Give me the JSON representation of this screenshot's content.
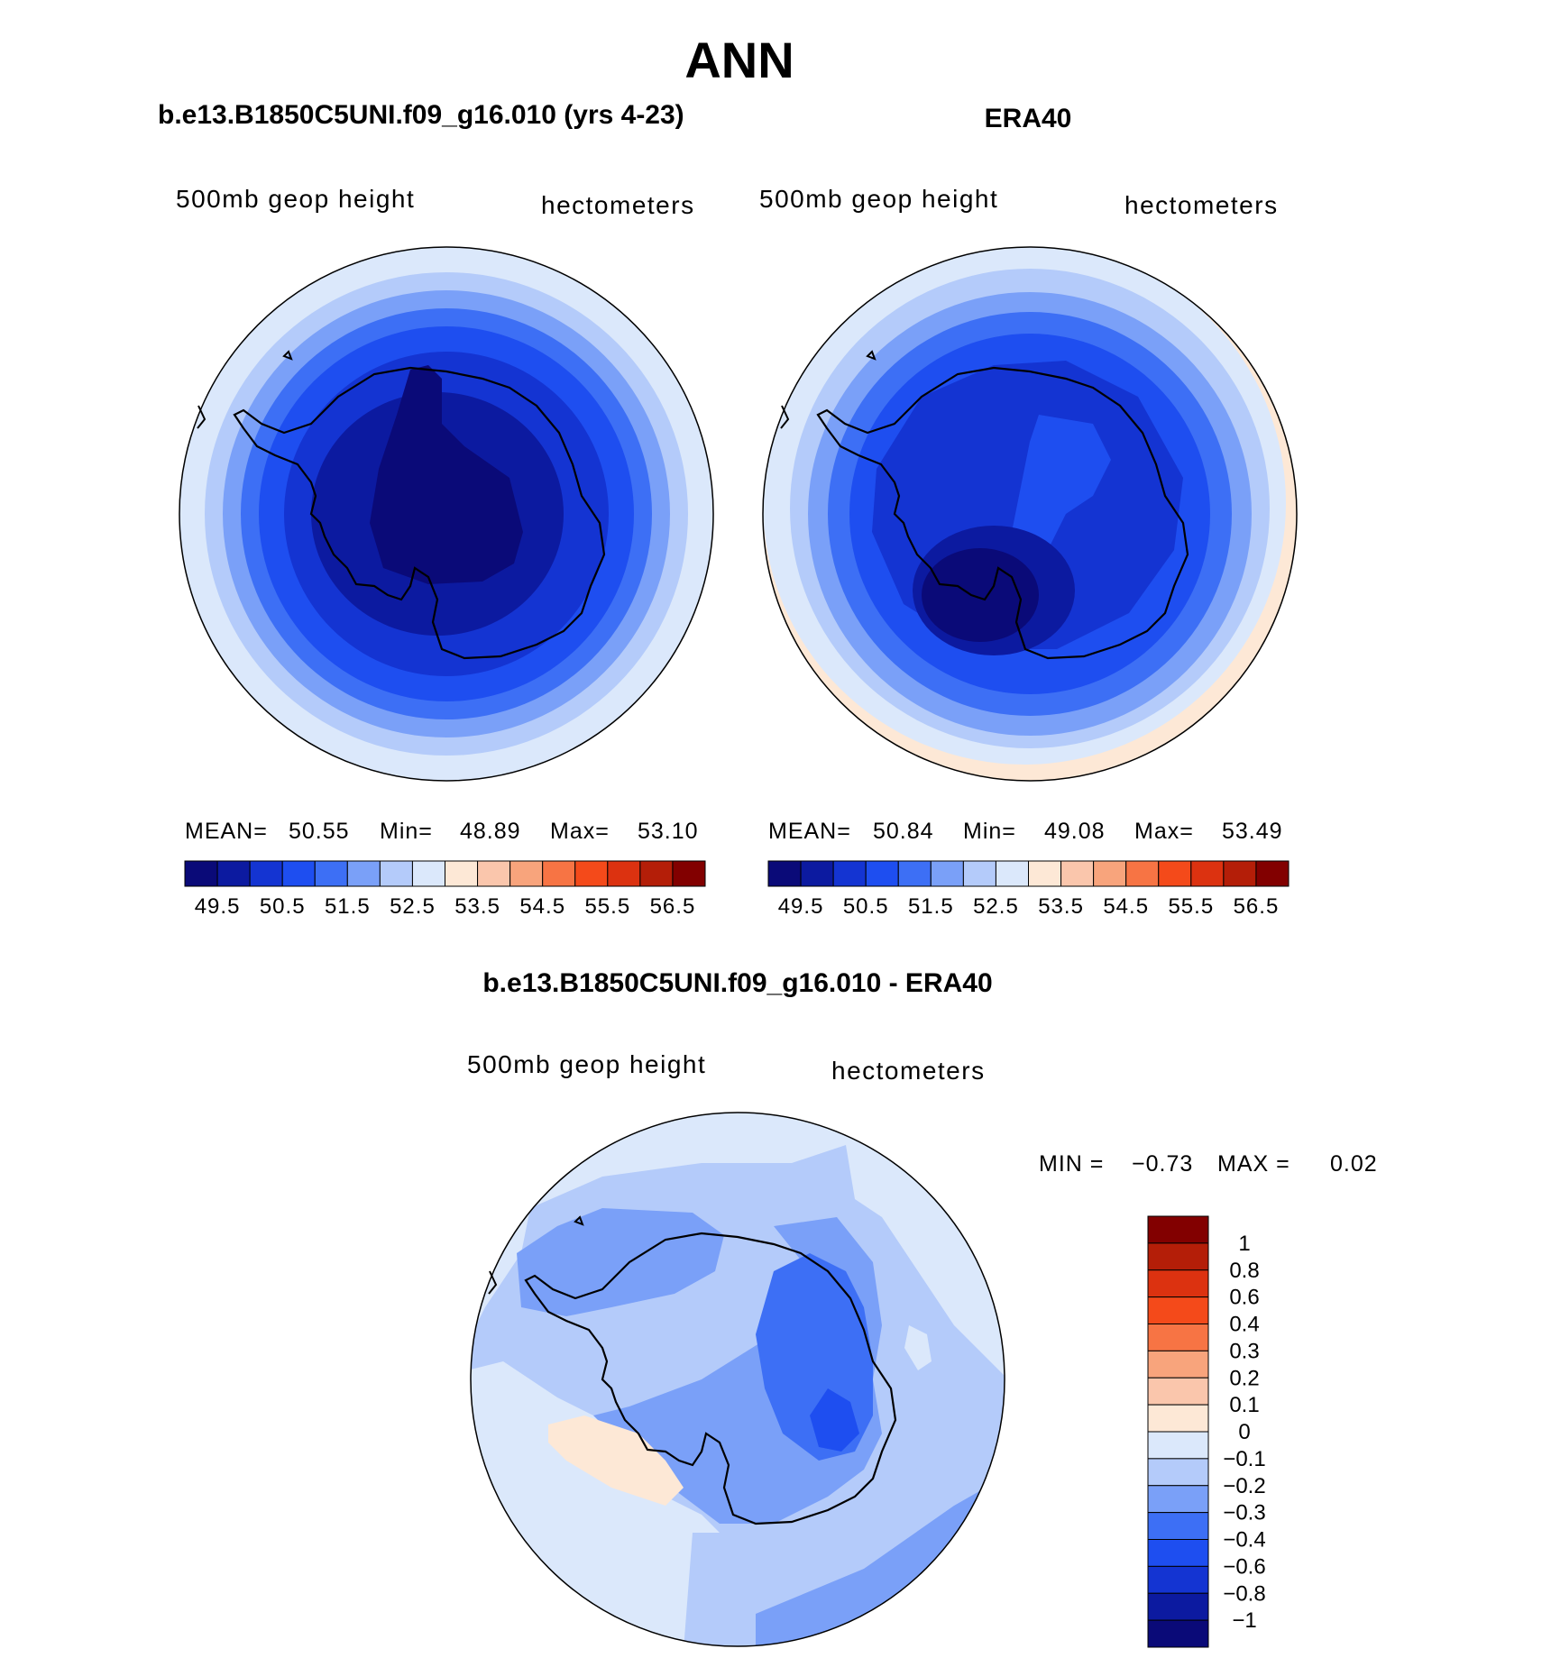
{
  "figure": {
    "title": "ANN",
    "panels": {
      "model": {
        "title": "b.e13.B1850C5UNI.f09_g16.010 (yrs 4-23)",
        "variable": "500mb geop height",
        "units": "hectometers",
        "stats": {
          "mean_label": "MEAN=",
          "mean": "50.55",
          "min_label": "Min=",
          "min": "48.89",
          "max_label": "Max=",
          "max": "53.10"
        }
      },
      "obs": {
        "title": "ERA40",
        "variable": "500mb geop height",
        "units": "hectometers",
        "stats": {
          "mean_label": "MEAN=",
          "mean": "50.84",
          "min_label": "Min=",
          "min": "49.08",
          "max_label": "Max=",
          "max": "53.49"
        }
      },
      "diff": {
        "title": "b.e13.B1850C5UNI.f09_g16.010 - ERA40",
        "variable": "500mb geop height",
        "units": "hectometers",
        "stats": {
          "min_label": "MIN =",
          "min": "−0.73",
          "max_label": "MAX =",
          "max": "0.02"
        }
      }
    },
    "abs_colorbar": {
      "colors": [
        "#0a0a78",
        "#0c1aa0",
        "#1434d2",
        "#1e4ef0",
        "#3d6ff5",
        "#7aa0f8",
        "#b4cbfa",
        "#dbe8fb",
        "#fde8d6",
        "#fac6ac",
        "#f8a47c",
        "#f77444",
        "#f44a1a",
        "#dc3210",
        "#b41e08",
        "#820000"
      ],
      "labels": [
        "49.5",
        "50.5",
        "51.5",
        "52.5",
        "53.5",
        "54.5",
        "55.5",
        "56.5"
      ]
    },
    "diff_colorbar": {
      "colors": [
        "#820000",
        "#b41e08",
        "#dc3210",
        "#f44a1a",
        "#f77444",
        "#f8a47c",
        "#fac6ac",
        "#fde8d6",
        "#dbe8fb",
        "#b4cbfa",
        "#7aa0f8",
        "#3d6ff5",
        "#1e4ef0",
        "#1434d2",
        "#0c1aa0",
        "#0a0a78"
      ],
      "labels": [
        "1",
        "0.8",
        "0.6",
        "0.4",
        "0.3",
        "0.2",
        "0.1",
        "0",
        "−0.1",
        "−0.2",
        "−0.3",
        "−0.4",
        "−0.6",
        "−0.8",
        "−1"
      ]
    },
    "field_colors": {
      "ring_levels": [
        "#dbe8fb",
        "#b4cbfa",
        "#7aa0f8",
        "#3d6ff5",
        "#1e4ef0",
        "#1434d2",
        "#0c1aa0",
        "#0a0a78"
      ],
      "diff_positive": "#fde8d6",
      "coast": "#000000"
    }
  }
}
